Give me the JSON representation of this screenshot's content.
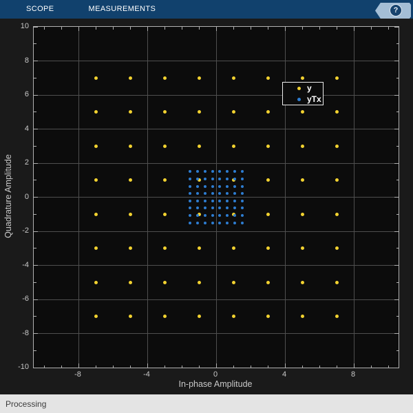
{
  "toolbar": {
    "tabs": [
      {
        "label": "SCOPE"
      },
      {
        "label": "MEASUREMENTS"
      }
    ],
    "help_label": "?"
  },
  "status_bar": {
    "text": "Processing"
  },
  "colors": {
    "toolbar_bg": "#11416d",
    "figure_bg": "#1a1a1a",
    "plot_bg": "#0c0c0c",
    "grid": "#4f4f4f",
    "axis_border": "#b2b2b2",
    "tick_text": "#c9c9c9",
    "series_y": "#f2d230",
    "series_ytx": "#2e7dd1",
    "status_bg": "#e4e4e4"
  },
  "chart_data": {
    "type": "scatter",
    "title": "",
    "xlabel": "In-phase Amplitude",
    "ylabel": "Quadrature Amplitude",
    "xlim": [
      -10.6,
      10.6
    ],
    "ylim": [
      -10,
      10
    ],
    "xtick_labels": [
      -8,
      -4,
      0,
      4,
      8
    ],
    "ytick_labels": [
      10,
      8,
      6,
      4,
      2,
      0,
      -2,
      -4,
      -6,
      -8,
      -10
    ],
    "minor_tick_step": 1,
    "minor_tick_range": [
      -10,
      10
    ],
    "grid_x": [
      -8,
      -4,
      0,
      4,
      8
    ],
    "grid_y": [
      -8,
      -6,
      -4,
      -2,
      0,
      2,
      4,
      6,
      8
    ],
    "grid": true,
    "legend_position": "upper-right-inside",
    "series": [
      {
        "name": "y",
        "color": "#f2d230",
        "marker": "dot",
        "marker_size": 5,
        "pattern": "square-grid-all-combinations",
        "grid_levels": [
          -7,
          -5,
          -3,
          -1,
          1,
          3,
          5,
          7
        ],
        "description": "64-QAM constellation: 64 points at every (x,y) pair of grid_levels"
      },
      {
        "name": "yTx",
        "color": "#2e7dd1",
        "marker": "dot",
        "marker_size": 4,
        "pattern": "square-grid-all-combinations",
        "grid_levels": [
          -1.508,
          -1.077,
          -0.646,
          -0.215,
          0.215,
          0.646,
          1.077,
          1.508
        ],
        "description": "Transmitted 64-QAM constellation scaled toward origin: 64 points at every (x,y) pair of grid_levels"
      }
    ]
  }
}
